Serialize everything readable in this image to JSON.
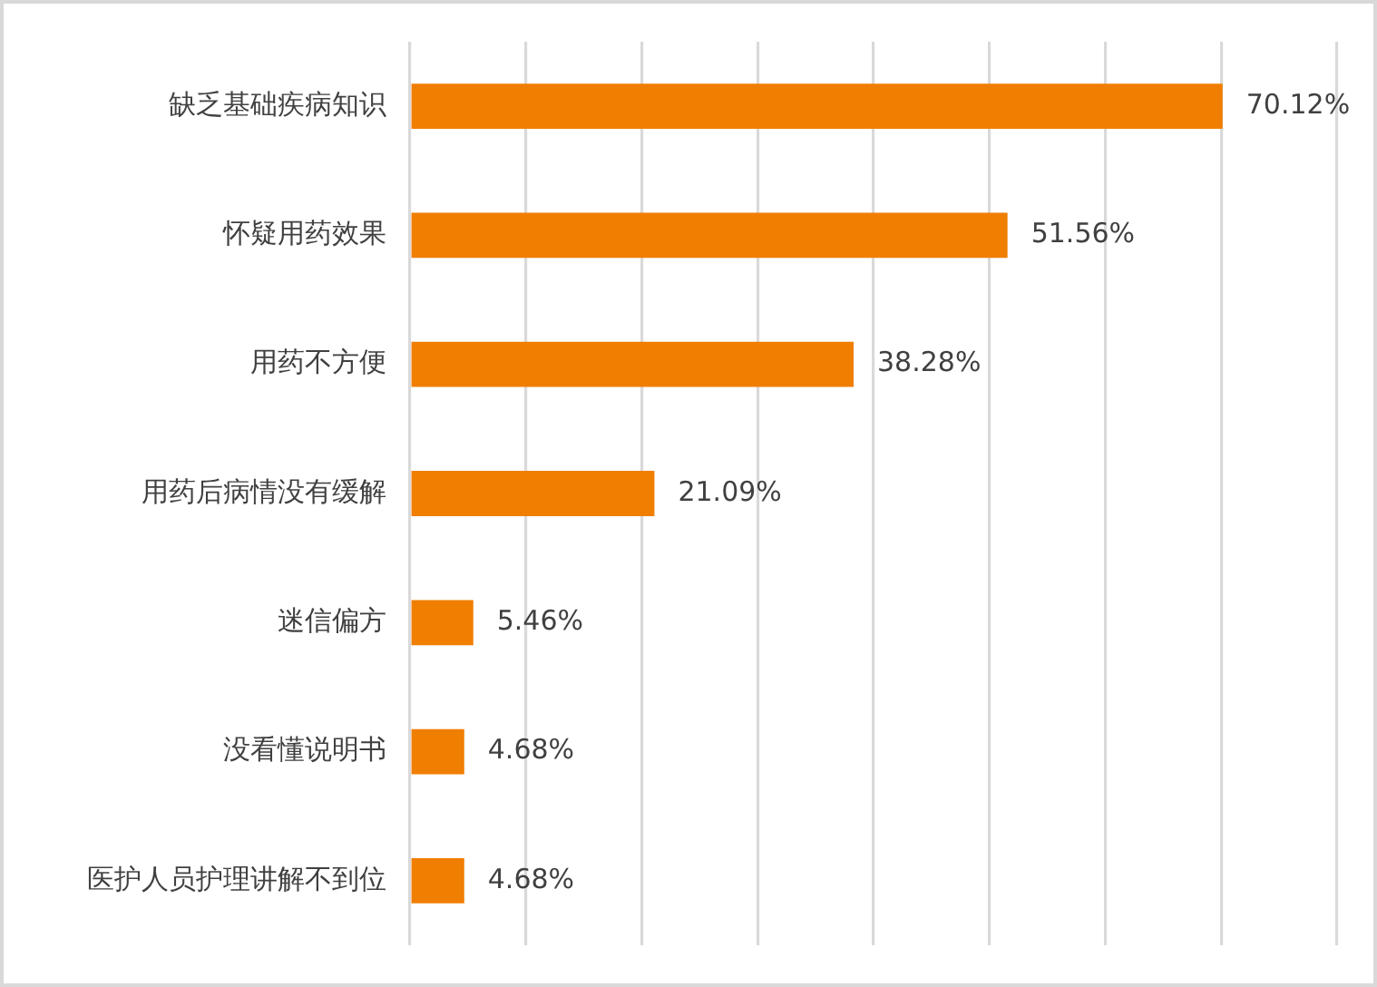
{
  "chart_data": {
    "type": "bar",
    "orientation": "horizontal",
    "categories": [
      "缺乏基础疾病知识",
      "怀疑用药效果",
      "用药不方便",
      "用药后病情没有缓解",
      "迷信偏方",
      "没看懂说明书",
      "医护人员护理讲解不到位"
    ],
    "values": [
      70.12,
      51.56,
      38.28,
      21.09,
      5.46,
      4.68,
      4.68
    ],
    "value_labels": [
      "70.12%",
      "51.56%",
      "38.28%",
      "21.09%",
      "5.46%",
      "4.68%",
      "4.68%"
    ],
    "color": "#f07e00",
    "xlim": [
      0,
      80
    ],
    "xticks": [
      {
        "value": 0,
        "label": null
      },
      {
        "value": 10,
        "label": null
      },
      {
        "value": 20,
        "label": null
      },
      {
        "value": 30,
        "label": null
      },
      {
        "value": 40,
        "label": null
      },
      {
        "value": 50,
        "label": null
      },
      {
        "value": 60,
        "label": null
      },
      {
        "value": 70,
        "label": null
      },
      {
        "value": 80,
        "label": null
      }
    ],
    "grid": "x",
    "tick_labels": "y",
    "legend": false
  }
}
